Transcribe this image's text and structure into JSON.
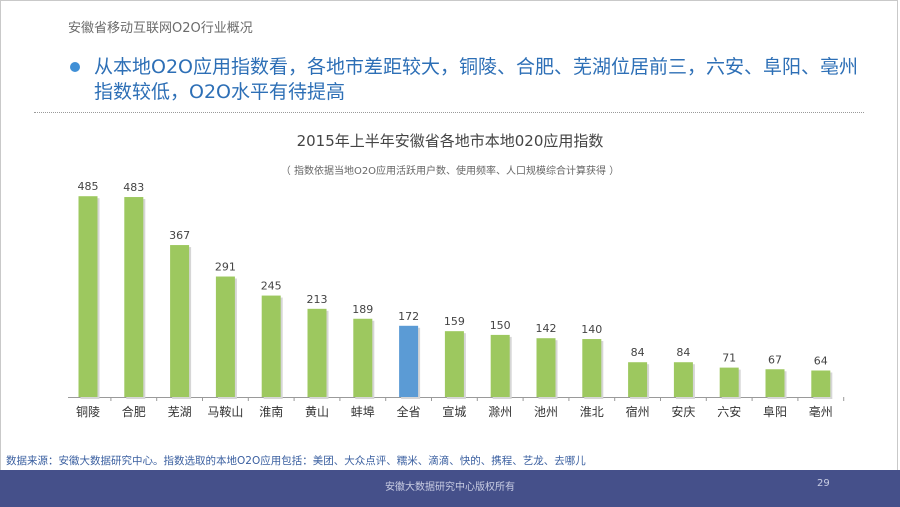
{
  "header": {
    "section_title": "安徽省移动互联网O2O行业概况",
    "headline": "从本地O2O应用指数看，各地市差距较大，铜陵、合肥、芜湖位居前三，六安、阜阳、亳州指数较低，O2O水平有待提高"
  },
  "chart_data": {
    "type": "bar",
    "title": "2015年上半年安徽省各地市本地020应用指数",
    "subtitle": "（ 指数依据当地O2O应用活跃用户数、使用频率、人口规模综合计算获得 ）",
    "categories": [
      "铜陵",
      "合肥",
      "芜湖",
      "马鞍山",
      "淮南",
      "黄山",
      "蚌埠",
      "全省",
      "宣城",
      "滁州",
      "池州",
      "淮北",
      "宿州",
      "安庆",
      "六安",
      "阜阳",
      "亳州"
    ],
    "values": [
      485,
      483,
      367,
      291,
      245,
      213,
      189,
      172,
      159,
      150,
      142,
      140,
      84,
      84,
      71,
      67,
      64
    ],
    "highlight_category": "全省",
    "ylim": [
      0,
      500
    ],
    "grid": false,
    "colors": {
      "bar": "#9dc85f",
      "highlight": "#5b9bd5",
      "axis": "#9a9a9a",
      "label": "#444444"
    }
  },
  "footer": {
    "source": "数据来源：安徽大数据研究中心。指数选取的本地O2O应用包括：美团、大众点评、糯米、滴滴、快的、携程、艺龙、去哪儿",
    "copyright": "安徽大数据研究中心版权所有",
    "page_number": "29"
  }
}
